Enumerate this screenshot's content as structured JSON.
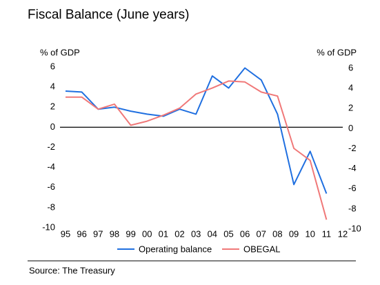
{
  "chart_data": {
    "type": "line",
    "title": "Fiscal Balance (June years)",
    "y_label": "% of GDP",
    "y2_label": "% of GDP",
    "categories": [
      "95",
      "96",
      "97",
      "98",
      "99",
      "00",
      "01",
      "02",
      "03",
      "04",
      "05",
      "06",
      "07",
      "08",
      "09",
      "10",
      "11",
      "12"
    ],
    "series": [
      {
        "name": "Operating balance",
        "color": "#1f6fe0",
        "values": [
          3.6,
          3.5,
          1.8,
          2.0,
          1.6,
          1.3,
          1.1,
          1.8,
          1.3,
          5.1,
          3.9,
          5.9,
          4.7,
          1.3,
          -5.7,
          -2.4,
          -6.6,
          null
        ]
      },
      {
        "name": "OBEGAL",
        "color": "#f07878",
        "values": [
          3.0,
          3.0,
          1.8,
          2.3,
          0.2,
          0.6,
          1.2,
          1.9,
          3.3,
          3.9,
          4.6,
          4.5,
          3.5,
          3.1,
          -2.1,
          -3.3,
          -9.2,
          null
        ]
      }
    ],
    "ylim": [
      -10,
      6
    ],
    "yticks": [
      -10,
      -8,
      -6,
      -4,
      -2,
      0,
      2,
      4,
      6
    ],
    "y2lim": [
      -10,
      6
    ],
    "y2ticks": [
      -10,
      -8,
      -6,
      -4,
      -2,
      0,
      2,
      4,
      6
    ],
    "legend": "bottom",
    "source": "Source: The Treasury"
  }
}
